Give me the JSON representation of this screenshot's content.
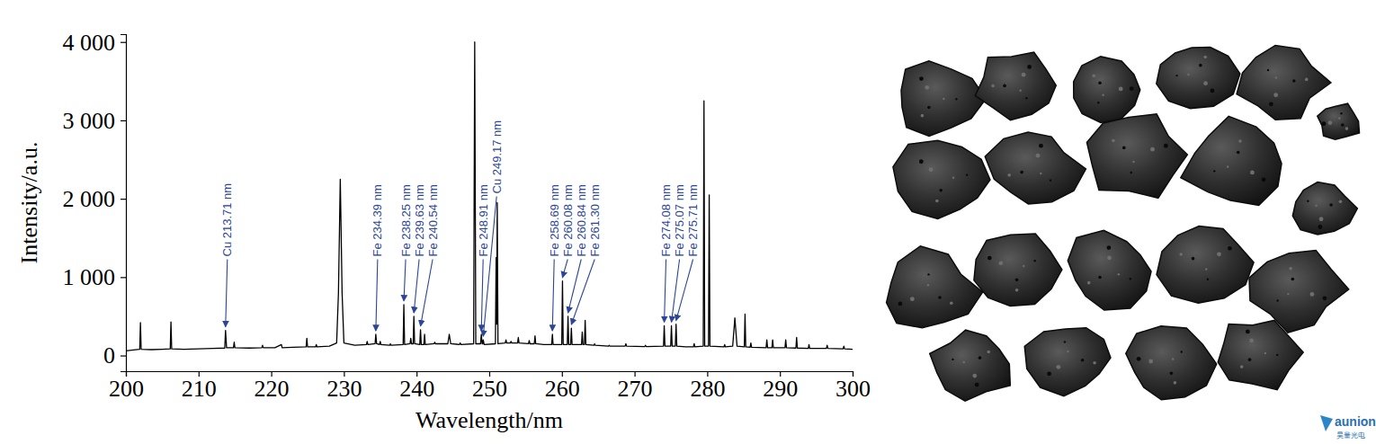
{
  "chart_data": {
    "type": "line",
    "x_label": "Wavelength/nm",
    "y_label": "Intensity/a.u.",
    "color": "#000000",
    "xlim": [
      200,
      300
    ],
    "xticks": [
      200,
      210,
      220,
      230,
      240,
      250,
      260,
      270,
      280,
      290,
      300
    ],
    "ylim": [
      -200,
      4100
    ],
    "yticks": [
      0,
      {
        "value": 1000,
        "label": "1 000"
      },
      {
        "value": 2000,
        "label": "2 000"
      },
      {
        "value": 3000,
        "label": "3 000"
      },
      {
        "value": 4000,
        "label": "4 000"
      }
    ],
    "grid": false,
    "x": [
      200.0,
      201.0,
      201.9,
      202.0,
      202.1,
      203.5,
      205.0,
      206.1,
      206.2,
      206.3,
      208.0,
      210.0,
      212.0,
      213.6,
      213.71,
      213.85,
      214.8,
      214.9,
      215.0,
      217.0,
      218.7,
      218.8,
      218.9,
      220.5,
      221.4,
      221.5,
      223.0,
      224.8,
      224.9,
      225.0,
      226.1,
      226.2,
      226.3,
      228.0,
      229.0,
      229.25,
      229.5,
      229.75,
      230.0,
      231.5,
      233.1,
      233.2,
      233.3,
      234.29,
      234.39,
      234.5,
      234.9,
      235.0,
      235.1,
      236.3,
      236.4,
      236.5,
      238.15,
      238.25,
      238.35,
      239.1,
      239.2,
      239.3,
      239.53,
      239.63,
      239.73,
      240.44,
      240.54,
      240.64,
      241.0,
      241.1,
      241.2,
      242.4,
      242.5,
      242.6,
      244.3,
      244.5,
      244.7,
      245.9,
      246.0,
      246.1,
      247.85,
      248.0,
      248.15,
      248.8,
      248.91,
      249.02,
      249.1,
      249.17,
      249.3,
      250.85,
      250.95,
      251.02,
      251.1,
      251.2,
      252.2,
      252.3,
      252.4,
      252.9,
      253.0,
      253.1,
      253.9,
      254.0,
      254.1,
      255.4,
      255.5,
      255.6,
      256.2,
      256.3,
      256.4,
      257.5,
      258.59,
      258.69,
      258.79,
      259.98,
      260.08,
      260.18,
      260.74,
      260.84,
      260.94,
      261.2,
      261.3,
      261.4,
      262.7,
      262.8,
      262.9,
      263.1,
      263.2,
      263.3,
      264.4,
      264.5,
      264.6,
      266.4,
      266.5,
      266.6,
      268.7,
      268.8,
      268.9,
      271.4,
      271.5,
      271.6,
      273.98,
      274.08,
      274.18,
      274.97,
      275.07,
      275.17,
      275.61,
      275.71,
      275.81,
      277.0,
      278.1,
      278.2,
      278.3,
      279.45,
      279.55,
      279.65,
      280.17,
      280.27,
      280.37,
      282.3,
      282.4,
      282.5,
      283.5,
      283.8,
      284.1,
      285.1,
      285.2,
      285.3,
      285.9,
      286.0,
      286.1,
      288.1,
      288.2,
      288.3,
      288.9,
      289.0,
      289.1,
      290.7,
      290.8,
      290.9,
      292.2,
      292.3,
      292.4,
      293.9,
      294.0,
      294.1,
      296.4,
      296.5,
      296.6,
      298.7,
      298.8,
      298.9,
      300.0
    ],
    "values": [
      60,
      70,
      80,
      420,
      80,
      75,
      80,
      85,
      430,
      85,
      80,
      85,
      90,
      95,
      320,
      100,
      100,
      170,
      100,
      95,
      100,
      130,
      100,
      100,
      140,
      100,
      105,
      110,
      220,
      110,
      110,
      140,
      110,
      120,
      160,
      800,
      2250,
      800,
      160,
      130,
      140,
      180,
      140,
      150,
      270,
      150,
      140,
      180,
      140,
      130,
      150,
      130,
      140,
      650,
      140,
      150,
      220,
      150,
      150,
      500,
      150,
      140,
      330,
      140,
      140,
      270,
      140,
      150,
      170,
      150,
      150,
      270,
      150,
      140,
      160,
      140,
      150,
      4000,
      150,
      150,
      270,
      150,
      150,
      200,
      140,
      150,
      1250,
      400,
      1950,
      150,
      160,
      200,
      160,
      160,
      180,
      160,
      160,
      230,
      160,
      150,
      190,
      150,
      150,
      250,
      150,
      140,
      140,
      270,
      140,
      140,
      950,
      140,
      140,
      500,
      140,
      140,
      350,
      140,
      140,
      300,
      140,
      140,
      450,
      140,
      130,
      150,
      130,
      120,
      130,
      120,
      120,
      150,
      120,
      115,
      130,
      115,
      120,
      380,
      120,
      120,
      380,
      120,
      120,
      400,
      120,
      110,
      110,
      150,
      110,
      120,
      3250,
      120,
      120,
      2050,
      120,
      110,
      140,
      110,
      120,
      480,
      120,
      110,
      530,
      110,
      105,
      160,
      105,
      100,
      200,
      100,
      100,
      200,
      100,
      100,
      200,
      100,
      95,
      230,
      95,
      90,
      140,
      90,
      90,
      130,
      90,
      85,
      120,
      85,
      80
    ],
    "annotations": [
      {
        "text": "Cu 213.71 nm",
        "x": 213.71,
        "y": 320,
        "color": "#2c4696"
      },
      {
        "text": "Fe 234.39 nm",
        "x": 234.39,
        "y": 270,
        "color": "#2c4696"
      },
      {
        "text": "Fe 238.25 nm",
        "x": 238.25,
        "y": 650,
        "color": "#2c4696"
      },
      {
        "text": "Fe 239.63 nm",
        "x": 239.63,
        "y": 500,
        "color": "#2c4696"
      },
      {
        "text": "Fe 240.54 nm",
        "x": 240.54,
        "y": 330,
        "color": "#2c4696"
      },
      {
        "text": "Fe 248.91 nm",
        "x": 248.91,
        "y": 270,
        "color": "#2c4696"
      },
      {
        "text": "Cu 249.17 nm",
        "x": 249.17,
        "y": 200,
        "color": "#2c4696"
      },
      {
        "text": "Fe 258.69 nm",
        "x": 258.69,
        "y": 270,
        "color": "#2c4696"
      },
      {
        "text": "Fe 260.08 nm",
        "x": 260.08,
        "y": 950,
        "color": "#2c4696"
      },
      {
        "text": "Fe 260.84 nm",
        "x": 260.84,
        "y": 500,
        "color": "#2c4696"
      },
      {
        "text": "Fe 261.30 nm",
        "x": 261.3,
        "y": 350,
        "color": "#2c4696"
      },
      {
        "text": "Fe 274.08 nm",
        "x": 274.08,
        "y": 380,
        "color": "#2c4696"
      },
      {
        "text": "Fe 275.07 nm",
        "x": 275.07,
        "y": 380,
        "color": "#2c4696"
      },
      {
        "text": "Fe 275.71 nm",
        "x": 275.71,
        "y": 400,
        "color": "#2c4696"
      }
    ]
  },
  "image": {
    "watermark": "aunion",
    "watermark_subtext": "昊量光电"
  }
}
